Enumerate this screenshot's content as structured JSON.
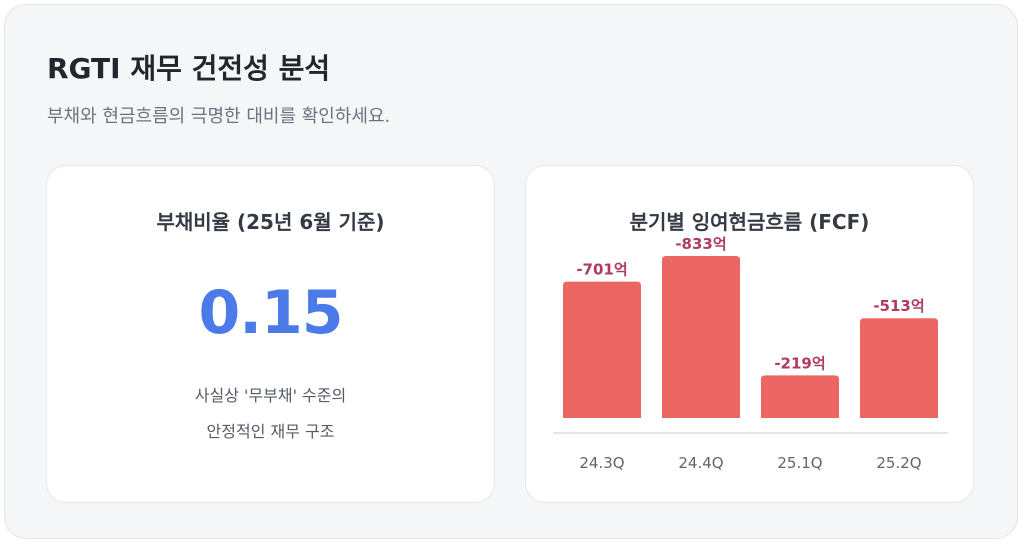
{
  "title": "RGTI 재무 건전성 분석",
  "subtitle": "부채와 현금흐름의 극명한 대비를 확인하세요.",
  "debt_card": {
    "title": "부채비율 (25년 6월 기준)",
    "value": "0.15",
    "description_line1": "사실상 '무부채' 수준의",
    "description_line2": "안정적인 재무 구조",
    "value_color": "#4a7be8"
  },
  "fcf_card": {
    "title": "분기별 잉여현금흐름 (FCF)"
  },
  "chart_data": {
    "type": "bar",
    "title": "분기별 잉여현금흐름 (FCF)",
    "categories": [
      "24.3Q",
      "24.4Q",
      "25.1Q",
      "25.2Q"
    ],
    "values": [
      -701,
      -833,
      -219,
      -513
    ],
    "value_labels": [
      "-701억",
      "-833억",
      "-219억",
      "-513억"
    ],
    "unit": "억",
    "bar_color": "#ec6763",
    "label_color": "#b03a62",
    "grid": false
  }
}
